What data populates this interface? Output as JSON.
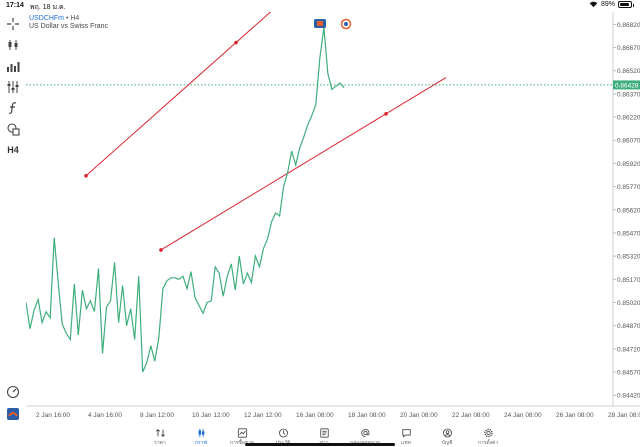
{
  "status": {
    "time": "17:14",
    "date": "พฤ. 18 ม.ค.",
    "battery": "89%",
    "battery_level": 0.89
  },
  "symbol": {
    "name": "USDCHFm",
    "timeframe": "• H4",
    "description": "US Dollar vs Swiss Franc"
  },
  "toolbar": {
    "timeframe_label": "H4",
    "icons": [
      "crosshair-icon",
      "candlestick-icon",
      "bar-chart-icon",
      "indicators-icon",
      "function-icon",
      "shapes-icon",
      "timeframe-h4",
      "speedometer-icon",
      "broker-logo-icon"
    ]
  },
  "chart_data": {
    "type": "line",
    "series": [
      {
        "color": "#3fae7d",
        "values": [
          0.8502,
          0.8485,
          0.8497,
          0.8504,
          0.8489,
          0.8496,
          0.8492,
          0.8544,
          0.8515,
          0.8488,
          0.8482,
          0.8478,
          0.8514,
          0.8481,
          0.851,
          0.8498,
          0.8503,
          0.8496,
          0.8524,
          0.8469,
          0.8499,
          0.8503,
          0.8528,
          0.8489,
          0.8513,
          0.8487,
          0.8498,
          0.8478,
          0.8519,
          0.8457,
          0.8463,
          0.8474,
          0.8464,
          0.8479,
          0.8511,
          0.8516,
          0.8518,
          0.8518,
          0.8517,
          0.8519,
          0.8511,
          0.8522,
          0.8505,
          0.85,
          0.8495,
          0.8502,
          0.8503,
          0.8525,
          0.8521,
          0.8506,
          0.8519,
          0.8527,
          0.851,
          0.8532,
          0.8514,
          0.8521,
          0.8515,
          0.8532,
          0.8525,
          0.8537,
          0.8543,
          0.8554,
          0.856,
          0.8558,
          0.8577,
          0.8586,
          0.86,
          0.8591,
          0.8602,
          0.8609,
          0.8617,
          0.8623,
          0.863,
          0.866,
          0.868,
          0.865,
          0.864,
          0.8642,
          0.8644,
          0.8641
        ]
      }
    ],
    "current_price": "0.86428",
    "current_price_value": 0.86428,
    "trend_lines": [
      {
        "color": "#d9232d",
        "points": [
          [
            0.0,
            0.8584
          ],
          [
            0.3,
            0.86702
          ]
        ]
      },
      {
        "color": "#d9232d",
        "points": [
          [
            0.15,
            0.8536
          ],
          [
            0.6,
            0.86241
          ]
        ]
      }
    ],
    "ylim": [
      0.8435,
      0.869
    ],
    "y_ticks": [
      "0.86820",
      "0.86670",
      "0.86520",
      "0.86370",
      "0.86220",
      "0.86070",
      "0.85920",
      "0.85770",
      "0.85620",
      "0.85470",
      "0.85320",
      "0.85170",
      "0.85020",
      "0.84870",
      "0.84720",
      "0.84570",
      "0.84420"
    ],
    "y_tick_values": [
      0.8682,
      0.8667,
      0.8652,
      0.8637,
      0.8622,
      0.8607,
      0.8592,
      0.8577,
      0.8562,
      0.8547,
      0.8532,
      0.8517,
      0.8502,
      0.8487,
      0.8472,
      0.8457,
      0.8442
    ],
    "x_ticks": [
      "2 Jan 16:00",
      "4 Jan 16:00",
      "8 Jan 12:00",
      "10 Jan 12:00",
      "12 Jan 12:00",
      "16 Jan 08:00",
      "18 Jan 08:00",
      "20 Jan 08:00",
      "22 Jan 08:00",
      "24 Jan 08:00",
      "26 Jan 08:00",
      "28 Jan 08:00"
    ]
  },
  "tabs": [
    {
      "label": "ราคา",
      "icon": "sort-arrows-icon",
      "active": false
    },
    {
      "label": "กราฟ",
      "icon": "candlestick-icon",
      "active": true
    },
    {
      "label": "การซื้อขาย",
      "icon": "trade-chart-icon",
      "active": false
    },
    {
      "label": "ประวัติ",
      "icon": "history-icon",
      "active": false
    },
    {
      "label": "ข่าว",
      "icon": "news-icon",
      "active": false
    },
    {
      "label": "กล่องจดหมาย",
      "icon": "mailbox-icon",
      "active": false
    },
    {
      "label": "แชท",
      "icon": "chat-icon",
      "active": false
    },
    {
      "label": "บัญชี",
      "icon": "account-icon",
      "active": false
    },
    {
      "label": "การตั้งค่า",
      "icon": "settings-icon",
      "active": false
    }
  ]
}
